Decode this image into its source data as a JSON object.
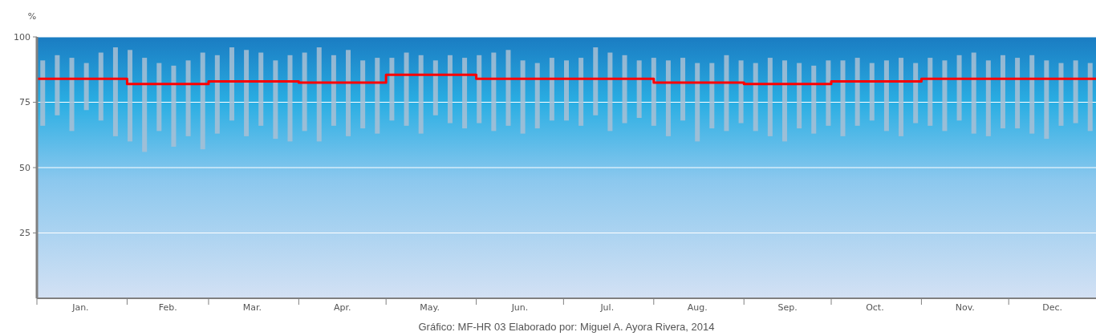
{
  "chart_data": {
    "type": "bar",
    "ylabel": "%",
    "ylim": [
      0,
      100
    ],
    "yticks": [
      25,
      50,
      75,
      100
    ],
    "xlim": [
      "--01-01",
      "--12-31"
    ],
    "xticks": [
      {
        "value": "--01-01",
        "label": null
      },
      {
        "value": "--01-16",
        "label": "Jan."
      },
      {
        "value": "--02-01",
        "label": null
      },
      {
        "value": "--02-15",
        "label": "Feb."
      },
      {
        "value": "--03-01",
        "label": null
      },
      {
        "value": "--03-16",
        "label": "Mar."
      },
      {
        "value": "--04-01",
        "label": null
      },
      {
        "value": "--04-16",
        "label": "Apr."
      },
      {
        "value": "--05-01",
        "label": null
      },
      {
        "value": "--05-16",
        "label": "May."
      },
      {
        "value": "--06-01",
        "label": null
      },
      {
        "value": "--06-16",
        "label": "Jun."
      },
      {
        "value": "--07-01",
        "label": null
      },
      {
        "value": "--07-16",
        "label": "Jul."
      },
      {
        "value": "--08-01",
        "label": null
      },
      {
        "value": "--08-16",
        "label": "Aug."
      },
      {
        "value": "--09-01",
        "label": null
      },
      {
        "value": "--09-16",
        "label": "Sep."
      },
      {
        "value": "--10-01",
        "label": null
      },
      {
        "value": "--10-16",
        "label": "Oct."
      },
      {
        "value": "--11-01",
        "label": null
      },
      {
        "value": "--11-16",
        "label": "Nov."
      },
      {
        "value": "--12-01",
        "label": null
      },
      {
        "value": "--12-16",
        "label": "Dec."
      }
    ],
    "grid": "y",
    "series": [
      {
        "color": "#a9bfd3",
        "x": [
          "--01-03",
          "--01-08",
          "--01-13",
          "--01-18",
          "--01-23",
          "--01-28",
          "--02-02",
          "--02-07",
          "--02-12",
          "--02-17",
          "--02-22",
          "--02-27",
          "--03-04",
          "--03-09",
          "--03-14",
          "--03-19",
          "--03-24",
          "--03-29",
          "--04-03",
          "--04-08",
          "--04-13",
          "--04-18",
          "--04-23",
          "--04-28",
          "--05-03",
          "--05-08",
          "--05-13",
          "--05-18",
          "--05-23",
          "--05-28",
          "--06-02",
          "--06-07",
          "--06-12",
          "--06-17",
          "--06-22",
          "--06-27",
          "--07-02",
          "--07-07",
          "--07-12",
          "--07-17",
          "--07-22",
          "--07-27",
          "--08-01",
          "--08-06",
          "--08-11",
          "--08-16",
          "--08-21",
          "--08-26",
          "--08-31",
          "--09-05",
          "--09-10",
          "--09-15",
          "--09-20",
          "--09-25",
          "--09-30",
          "--10-05",
          "--10-10",
          "--10-15",
          "--10-20",
          "--10-25",
          "--10-30",
          "--11-04",
          "--11-09",
          "--11-14",
          "--11-19",
          "--11-24",
          "--11-29",
          "--12-04",
          "--12-09",
          "--12-14",
          "--12-19",
          "--12-24",
          "--12-29"
        ],
        "base": [
          66,
          70,
          64,
          72,
          68,
          62,
          60,
          56,
          64,
          58,
          62,
          57,
          63,
          68,
          62,
          66,
          61,
          60,
          64,
          60,
          66,
          62,
          65,
          63,
          68,
          66,
          63,
          70,
          67,
          65,
          67,
          64,
          66,
          63,
          65,
          68,
          68,
          66,
          70,
          64,
          67,
          69,
          66,
          62,
          68,
          60,
          65,
          64,
          67,
          64,
          62,
          60,
          65,
          63,
          66,
          62,
          66,
          68,
          64,
          62,
          67,
          66,
          64,
          68,
          63,
          62,
          65,
          65,
          63,
          61,
          66,
          67,
          64
        ],
        "values": [
          25,
          23,
          28,
          18,
          26,
          34,
          35,
          36,
          26,
          31,
          29,
          37,
          30,
          28,
          33,
          28,
          30,
          33,
          30,
          36,
          27,
          33,
          26,
          29,
          24,
          28,
          30,
          21,
          26,
          27,
          26,
          30,
          29,
          28,
          25,
          24,
          23,
          26,
          26,
          30,
          26,
          22,
          26,
          29,
          24,
          30,
          25,
          29,
          24,
          26,
          30,
          31,
          25,
          26,
          25,
          29,
          26,
          22,
          27,
          30,
          23,
          26,
          27,
          25,
          31,
          29,
          28,
          27,
          30,
          30,
          24,
          24,
          26
        ]
      },
      {
        "type": "step",
        "color": "#ff0000",
        "x": [
          "--01-01",
          "--02-01",
          "--03-01",
          "--04-01",
          "--05-01",
          "--06-01",
          "--07-01",
          "--08-01",
          "--09-01",
          "--10-01",
          "--11-01",
          "--12-01",
          "--12-31"
        ],
        "values": [
          84,
          82,
          83,
          82.5,
          85.5,
          84,
          84,
          82.5,
          82,
          83,
          84,
          84,
          84
        ]
      }
    ],
    "annotations": [
      "Gráfico: MF-HR 03  Elaborado por: Miguel A. Ayora Rivera, 2014"
    ]
  }
}
